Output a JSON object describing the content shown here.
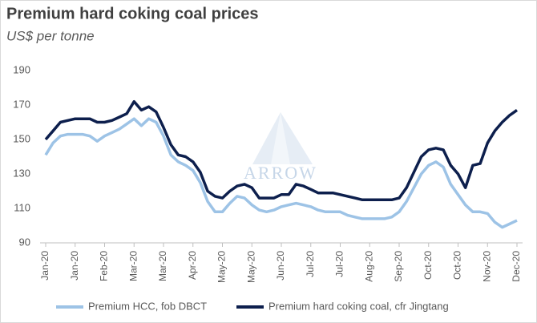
{
  "chart_data": {
    "type": "line",
    "title": "Premium hard coking coal prices",
    "subtitle": "US$ per tonne",
    "watermark": "ARROW",
    "categories": [
      "Jan-20",
      null,
      null,
      null,
      "Jan-20",
      null,
      null,
      null,
      "Feb-20",
      null,
      null,
      null,
      "Mar-20",
      null,
      null,
      null,
      "Mar-20",
      null,
      null,
      null,
      "Apr-20",
      null,
      null,
      null,
      "May-20",
      null,
      null,
      null,
      "May-20",
      null,
      null,
      null,
      "Jun-20",
      null,
      null,
      null,
      "Jul-20",
      null,
      null,
      null,
      "Jul-20",
      null,
      null,
      null,
      "Aug-20",
      null,
      null,
      null,
      "Sep-20",
      null,
      null,
      null,
      "Oct-20",
      null,
      null,
      null,
      "Oct-20",
      null,
      null,
      null,
      "Nov-20",
      null,
      null,
      null,
      "Dec-20"
    ],
    "series": [
      {
        "name": "Premium HCC, fob DBCT",
        "color": "#9dc3e6",
        "values": [
          141,
          148,
          152,
          153,
          153,
          153,
          152,
          149,
          152,
          154,
          156,
          159,
          162,
          158,
          162,
          160,
          152,
          141,
          137,
          135,
          132,
          125,
          114,
          108,
          108,
          113,
          117,
          116,
          112,
          109,
          108,
          109,
          111,
          112,
          113,
          112,
          111,
          109,
          108,
          108,
          108,
          106,
          105,
          104,
          104,
          104,
          104,
          105,
          108,
          114,
          122,
          130,
          135,
          137,
          134,
          124,
          118,
          112,
          108,
          108,
          107,
          102,
          99,
          101,
          103
        ]
      },
      {
        "name": "Premium hard coking coal, cfr Jingtang",
        "color": "#0d1f4d",
        "values": [
          150,
          155,
          160,
          161,
          162,
          162,
          162,
          160,
          160,
          161,
          163,
          165,
          172,
          167,
          169,
          166,
          157,
          147,
          141,
          140,
          137,
          131,
          120,
          117,
          116,
          120,
          123,
          124,
          122,
          116,
          116,
          116,
          118,
          118,
          124,
          123,
          121,
          119,
          119,
          119,
          118,
          117,
          116,
          115,
          115,
          115,
          115,
          115,
          116,
          122,
          131,
          140,
          144,
          145,
          144,
          135,
          130,
          122,
          135,
          136,
          148,
          155,
          160,
          164,
          167
        ]
      }
    ],
    "ylim": [
      90,
      190
    ],
    "yticks": [
      90,
      110,
      130,
      150,
      170,
      190
    ],
    "grid": false,
    "legend": "bottom"
  }
}
